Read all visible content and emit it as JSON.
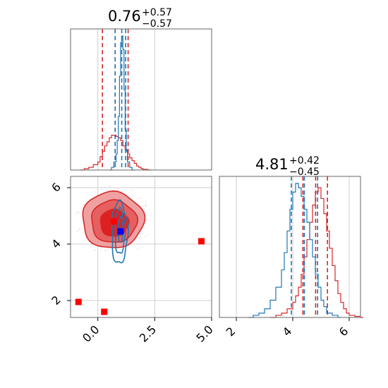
{
  "chart_data": [
    {
      "type": "area",
      "panel": "marginal-x",
      "title": {
        "value": "0.76",
        "plus": "+0.57",
        "minus": "−0.57"
      },
      "xlim": [
        -1.2,
        5.0
      ],
      "grid": true,
      "series": [
        {
          "color": "#d62728",
          "style": "step",
          "x": [
            -0.8,
            -0.6,
            -0.4,
            -0.2,
            0.0,
            0.1,
            0.2,
            0.3,
            0.4,
            0.5,
            0.6,
            0.7,
            0.8,
            0.9,
            1.0,
            1.1,
            1.2,
            1.3,
            1.4,
            1.5,
            1.6,
            1.7,
            1.8,
            1.9,
            2.0,
            2.2
          ],
          "values": [
            0,
            1,
            2,
            4,
            6,
            10,
            14,
            18,
            21,
            24,
            26,
            26,
            25,
            24,
            22,
            18,
            15,
            12,
            9,
            7,
            5,
            3,
            2,
            1,
            0.5,
            0
          ],
          "quantile_lines": [
            0.2,
            0.76,
            1.33
          ]
        },
        {
          "color": "#1f77b4",
          "style": "step",
          "x": [
            0.5,
            0.6,
            0.7,
            0.8,
            0.85,
            0.9,
            0.95,
            1.0,
            1.05,
            1.1,
            1.15,
            1.2,
            1.25,
            1.3,
            1.4,
            1.5
          ],
          "values": [
            0,
            2,
            6,
            12,
            22,
            40,
            70,
            95,
            100,
            90,
            60,
            30,
            14,
            6,
            2,
            0
          ],
          "quantile_lines": [
            0.76,
            1.05,
            1.22
          ]
        }
      ]
    },
    {
      "type": "area",
      "panel": "marginal-y",
      "title": {
        "value": "4.81",
        "plus": "+0.42",
        "minus": "−0.45"
      },
      "xlim": [
        1.4,
        6.4
      ],
      "xticks": [
        "2",
        "4",
        "6"
      ],
      "grid": true,
      "series": [
        {
          "color": "#d62728",
          "style": "step",
          "x": [
            3.2,
            3.4,
            3.6,
            3.8,
            4.0,
            4.1,
            4.2,
            4.3,
            4.4,
            4.5,
            4.6,
            4.7,
            4.8,
            4.9,
            5.0,
            5.1,
            5.2,
            5.3,
            5.4,
            5.5,
            5.6,
            5.7,
            5.8,
            5.9,
            6.0,
            6.2,
            6.4
          ],
          "values": [
            0,
            1,
            2,
            4,
            7,
            10,
            14,
            20,
            28,
            36,
            44,
            52,
            58,
            60,
            55,
            48,
            40,
            32,
            24,
            17,
            11,
            7,
            4,
            2,
            1,
            0.5,
            0
          ],
          "quantile_lines": [
            4.36,
            4.81,
            5.23
          ]
        },
        {
          "color": "#1f77b4",
          "style": "step",
          "x": [
            2.4,
            2.6,
            2.8,
            3.0,
            3.2,
            3.4,
            3.6,
            3.7,
            3.8,
            3.9,
            4.0,
            4.1,
            4.2,
            4.3,
            4.4,
            4.5,
            4.6,
            4.7,
            4.8,
            4.9,
            5.0,
            5.1,
            5.2,
            5.4,
            5.6
          ],
          "values": [
            0,
            1,
            2,
            4,
            8,
            14,
            22,
            30,
            40,
            50,
            58,
            62,
            60,
            56,
            50,
            44,
            36,
            28,
            20,
            14,
            8,
            5,
            2,
            1,
            0
          ],
          "quantile_lines": [
            3.95,
            4.41,
            4.88
          ]
        }
      ]
    },
    {
      "type": "scatter",
      "panel": "joint",
      "xlim": [
        -1.2,
        5.0
      ],
      "ylim": [
        1.4,
        6.4
      ],
      "xticks": [
        "0.0",
        "2.5",
        "5.0"
      ],
      "yticks": [
        "2",
        "4",
        "6"
      ],
      "grid": true,
      "red_contours": [
        {
          "cx": 0.65,
          "cy": 4.85,
          "rx": 1.35,
          "ry": 1.0,
          "fill": "#f0a0a0",
          "stroke": "#d62728"
        },
        {
          "cx": 0.7,
          "cy": 4.8,
          "rx": 1.0,
          "ry": 0.75,
          "fill": "#e66060",
          "stroke": "#d62728"
        },
        {
          "cx": 0.72,
          "cy": 4.75,
          "rx": 0.62,
          "ry": 0.48,
          "fill": "#dd2020",
          "stroke": "#d62728"
        }
      ],
      "blue_contours": [
        {
          "cx": 0.95,
          "cy": 4.4,
          "rx": 0.35,
          "ry": 1.1
        },
        {
          "cx": 0.97,
          "cy": 4.45,
          "rx": 0.22,
          "ry": 0.8
        },
        {
          "cx": 1.0,
          "cy": 4.5,
          "rx": 0.1,
          "ry": 0.45
        }
      ],
      "markers": [
        {
          "x": 0.7,
          "y": 4.8,
          "color": "#ff0000"
        },
        {
          "x": 4.55,
          "y": 4.1,
          "color": "#ff0000"
        },
        {
          "x": -0.85,
          "y": 1.95,
          "color": "#ff0000"
        },
        {
          "x": 0.28,
          "y": 1.6,
          "color": "#ff0000"
        },
        {
          "x": 1.0,
          "y": 4.45,
          "color": "#0000ff"
        }
      ]
    }
  ]
}
